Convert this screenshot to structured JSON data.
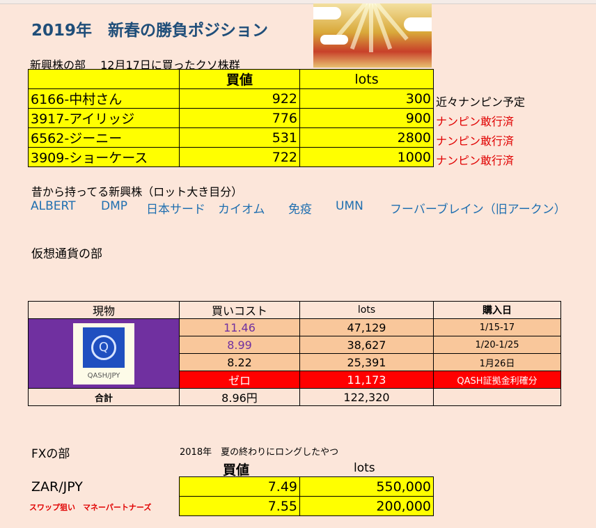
{
  "title": "2019年　新春の勝負ポジション",
  "emerging": {
    "subtitle": "新興株の部　 12月17日に買ったクソ株群",
    "headers": [
      "",
      "買値",
      "lots"
    ],
    "rows": [
      {
        "name": "6166-中村さん",
        "price": "922",
        "lots": "300",
        "note": "近々ナンピン予定",
        "note_color": "#000000"
      },
      {
        "name": "3917-アイリッジ",
        "price": "776",
        "lots": "900",
        "note": "ナンピン敢行済",
        "note_color": "#e00000"
      },
      {
        "name": "6562-ジーニー",
        "price": "531",
        "lots": "2800",
        "note": "ナンピン敢行済",
        "note_color": "#e00000"
      },
      {
        "name": "3909-ショーケース",
        "price": "722",
        "lots": "1000",
        "note": "ナンピン敢行済",
        "note_color": "#e00000"
      }
    ]
  },
  "old": {
    "label": "昔から持ってる新興株（ロット大き目分）",
    "stocks": [
      "ALBERT",
      "DMP",
      "日本サード",
      "カイオム",
      "免疫",
      "UMN",
      "フーバーブレイン（旧アークン）"
    ]
  },
  "crypto": {
    "label": "仮想通貨の部",
    "headers": [
      "現物",
      "買いコスト",
      "lots",
      "購入日"
    ],
    "logo_text": "QASH/JPY",
    "rows": [
      {
        "cost": "11.46",
        "lots": "47,129",
        "date": "1/15-17"
      },
      {
        "cost": "8.99",
        "lots": "38,627",
        "date": "1/20-1/25"
      },
      {
        "cost": "8.22",
        "lots": "25,391",
        "date": "1月26日"
      },
      {
        "cost": "ゼロ",
        "lots": "11,173",
        "date": "QASH証拠金利確分"
      }
    ],
    "total": {
      "label": "合計",
      "cost": "8.96円",
      "lots": "122,320"
    }
  },
  "fx": {
    "label": "FXの部",
    "subtitle": "2018年　夏の終わりにロングしたやつ",
    "headers": [
      "買値",
      "lots"
    ],
    "pair": "ZAR/JPY",
    "note": "スワップ狙い　マネーパートナーズ",
    "rows": [
      {
        "price": "7.49",
        "lots": "550,000"
      },
      {
        "price": "7.55",
        "lots": "200,000"
      }
    ]
  }
}
